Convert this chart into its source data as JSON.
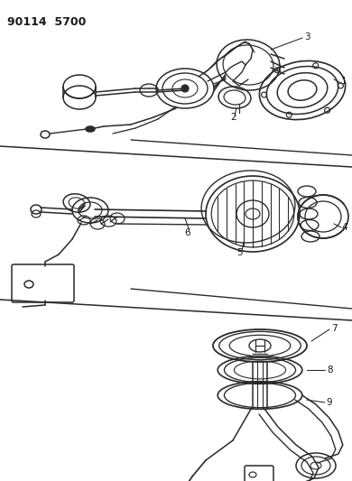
{
  "title_text": "90114  5700",
  "bg_color": "#ffffff",
  "line_color": "#2a2a2a",
  "lw": 1.1,
  "label_fontsize": 7.5,
  "label_color": "#1a1a1a"
}
